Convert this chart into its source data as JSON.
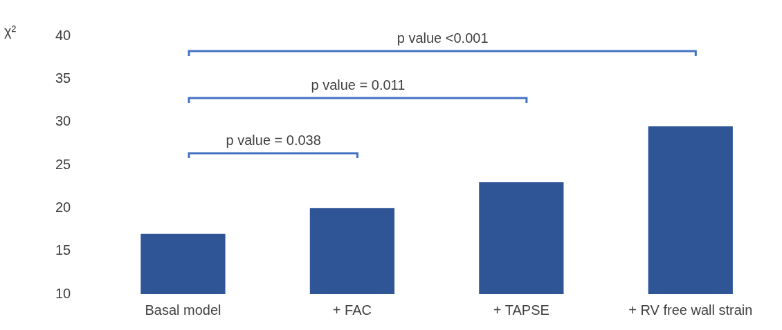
{
  "chart_data": {
    "type": "bar",
    "ylabel": "χ²",
    "categories": [
      "Basal model",
      "+ FAC",
      "+ TAPSE",
      "+ RV free wall strain"
    ],
    "values": [
      17,
      20,
      23,
      29.5
    ],
    "color": "#2f5597",
    "ylim": [
      10,
      40
    ],
    "yticks": [
      10,
      15,
      20,
      25,
      30,
      35,
      40
    ],
    "grid": false,
    "legend": false,
    "annotations": [
      "p value = 0.038",
      "p value = 0.011",
      "p value <0.001"
    ]
  }
}
